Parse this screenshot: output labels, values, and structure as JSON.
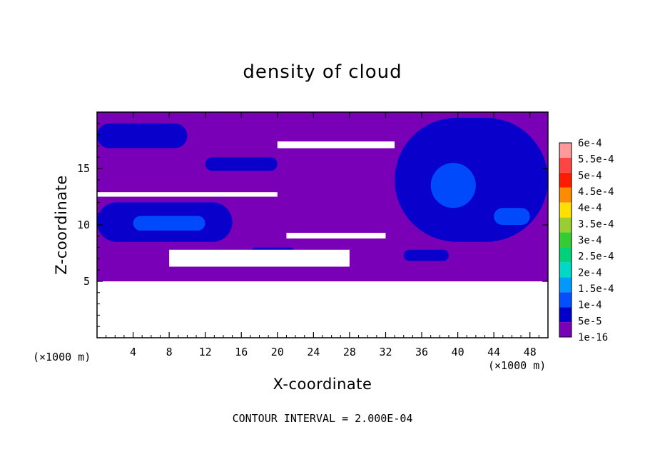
{
  "chart_data": {
    "type": "heatmap",
    "title": "density of cloud",
    "xlabel": "X-coordinate",
    "ylabel": "Z-coordinate",
    "x_unit_label": "(×1000 m)",
    "footnote": "CONTOUR INTERVAL = 2.000E-04",
    "xlim": [
      0,
      50
    ],
    "ylim": [
      0,
      20
    ],
    "x_ticks": [
      4,
      8,
      12,
      16,
      20,
      24,
      28,
      32,
      36,
      40,
      44,
      48
    ],
    "y_ticks": [
      5,
      10,
      15
    ],
    "colorbar": {
      "labels": [
        "6e-4",
        "5.5e-4",
        "5e-4",
        "4.5e-4",
        "4e-4",
        "3.5e-4",
        "3e-4",
        "2.5e-4",
        "2e-4",
        "1.5e-4",
        "1e-4",
        "5e-5",
        "1e-16"
      ],
      "colors": [
        "#ff9a9a",
        "#ff4444",
        "#ff1a00",
        "#ff8c00",
        "#ffe000",
        "#9acd32",
        "#33cc33",
        "#00d27a",
        "#00d8c8",
        "#0099ff",
        "#0050ff",
        "#0000cc",
        "#7a00b8"
      ]
    },
    "cloud_regions": [
      {
        "level": 0,
        "x": [
          0,
          50
        ],
        "z": [
          5,
          20
        ]
      },
      {
        "level": 1,
        "x": [
          33,
          50
        ],
        "z": [
          8.5,
          19.5
        ]
      },
      {
        "level": 1,
        "x": [
          0,
          15
        ],
        "z": [
          8.5,
          12
        ]
      },
      {
        "level": 1,
        "x": [
          0,
          10
        ],
        "z": [
          16.8,
          19
        ]
      },
      {
        "level": 1,
        "x": [
          12,
          20
        ],
        "z": [
          14.8,
          16
        ]
      },
      {
        "level": 1,
        "x": [
          17,
          22
        ],
        "z": [
          7,
          8
        ]
      },
      {
        "level": 1,
        "x": [
          34,
          39
        ],
        "z": [
          6.8,
          7.8
        ]
      },
      {
        "level": 2,
        "x": [
          37,
          42
        ],
        "z": [
          11.5,
          15.5
        ]
      },
      {
        "level": 2,
        "x": [
          4,
          12
        ],
        "z": [
          9.5,
          10.8
        ]
      },
      {
        "level": 2,
        "x": [
          44,
          48
        ],
        "z": [
          10,
          11.5
        ]
      }
    ],
    "empty_regions": [
      {
        "x": [
          0,
          50
        ],
        "z": [
          0,
          5
        ]
      },
      {
        "x": [
          20,
          33
        ],
        "z": [
          16.8,
          17.4
        ]
      },
      {
        "x": [
          0,
          20
        ],
        "z": [
          12.5,
          12.9
        ]
      },
      {
        "x": [
          21,
          32
        ],
        "z": [
          8.8,
          9.3
        ]
      },
      {
        "x": [
          8,
          28
        ],
        "z": [
          6.3,
          7.8
        ]
      }
    ]
  }
}
